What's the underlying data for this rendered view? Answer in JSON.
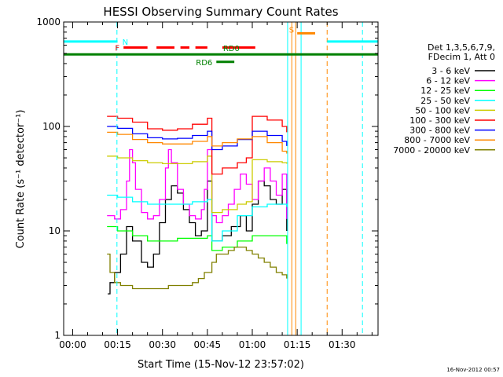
{
  "chart_data": {
    "type": "line",
    "title": "HESSI Observing Summary Count Rates",
    "xlabel": "Start Time (15-Nov-12 23:57:02)",
    "ylabel": "Count Rate (s⁻¹ detector⁻¹)",
    "x_unit": "minutes from 00:00",
    "xlim": [
      -3,
      102
    ],
    "ylim": [
      1,
      1000
    ],
    "log_y": true,
    "x_ticks": [
      "00:00",
      "00:15",
      "00:30",
      "00:45",
      "01:00",
      "01:15",
      "01:30"
    ],
    "x_tick_values": [
      0,
      15,
      30,
      45,
      60,
      75,
      90
    ],
    "y_ticks": [
      "1",
      "10",
      "100",
      "1000"
    ],
    "y_tick_values": [
      1,
      10,
      100,
      1000
    ],
    "grid": false,
    "legend": {
      "placement": "right",
      "header": [
        "Det 1,3,5,6,7,9,",
        "FDecim 1, Att 0"
      ]
    },
    "series": [
      {
        "name": "3 - 6 keV",
        "color": "#000000",
        "x": [
          11.7,
          12.5,
          14,
          16,
          18,
          20,
          23,
          25,
          27,
          29,
          31,
          33,
          35,
          37,
          39,
          41,
          43,
          45,
          46.5,
          48,
          50,
          53,
          56,
          58,
          60,
          62,
          64,
          66,
          68,
          70,
          71.5
        ],
        "y": [
          2.5,
          3.2,
          4,
          6,
          11,
          8,
          5,
          4.5,
          6,
          12,
          20,
          27,
          23,
          16,
          12,
          9,
          10,
          30,
          8,
          8,
          9,
          11,
          14,
          10,
          18,
          30,
          27,
          20,
          18,
          25,
          10
        ]
      },
      {
        "name": "6 - 12 keV",
        "color": "#ff00ff",
        "x": [
          11.5,
          14,
          16,
          18,
          19,
          20,
          21,
          23,
          25,
          27,
          29,
          31,
          32,
          33,
          35,
          37,
          39,
          41,
          43,
          44,
          45,
          46.5,
          48,
          50,
          52,
          54,
          56,
          58,
          60,
          62,
          64,
          66,
          68,
          70,
          71.5
        ],
        "y": [
          14,
          13,
          16,
          30,
          60,
          45,
          25,
          15,
          13,
          14,
          20,
          40,
          60,
          45,
          25,
          18,
          14,
          13,
          16,
          25,
          60,
          14,
          12,
          14,
          18,
          25,
          35,
          28,
          20,
          30,
          40,
          30,
          22,
          35,
          13
        ]
      },
      {
        "name": "12 - 25 keV",
        "color": "#00ff00",
        "x": [
          11.5,
          15,
          20,
          25,
          30,
          35,
          40,
          45,
          46.5,
          50,
          55,
          60,
          65,
          70,
          71.5
        ],
        "y": [
          11,
          10,
          9,
          8,
          8,
          8.5,
          8.5,
          9,
          6.5,
          7,
          8,
          9,
          9,
          9,
          7.5
        ]
      },
      {
        "name": "25 - 50 keV",
        "color": "#00ffff",
        "x": [
          11.5,
          15,
          20,
          25,
          30,
          35,
          40,
          45,
          46.5,
          50,
          55,
          60,
          65,
          70,
          71.5
        ],
        "y": [
          22,
          21,
          19,
          18,
          18,
          18,
          19,
          20,
          8,
          10,
          14,
          17,
          18,
          18,
          17
        ]
      },
      {
        "name": "50 - 100 keV",
        "color": "#cccc00",
        "x": [
          11.5,
          15,
          20,
          25,
          30,
          35,
          40,
          45,
          46.5,
          50,
          55,
          58,
          60,
          65,
          70,
          71.5
        ],
        "y": [
          52,
          50,
          47,
          45,
          44,
          44,
          46,
          52,
          15,
          16,
          18,
          19,
          48,
          46,
          45,
          44
        ]
      },
      {
        "name": "100 - 300 keV",
        "color": "#ff0000",
        "x": [
          11.5,
          15,
          20,
          25,
          30,
          35,
          40,
          45,
          46.5,
          50,
          55,
          58,
          60,
          65,
          70,
          71.5
        ],
        "y": [
          125,
          120,
          110,
          95,
          92,
          95,
          105,
          120,
          35,
          40,
          45,
          50,
          125,
          115,
          100,
          88
        ]
      },
      {
        "name": "300 - 800 keV",
        "color": "#0000ff",
        "x": [
          11.5,
          15,
          20,
          25,
          30,
          35,
          40,
          45,
          46.5,
          50,
          55,
          60,
          65,
          70,
          71.5
        ],
        "y": [
          100,
          96,
          85,
          78,
          76,
          77,
          82,
          90,
          60,
          65,
          75,
          90,
          82,
          72,
          65
        ]
      },
      {
        "name": "800 - 7000 keV",
        "color": "#ff8800",
        "x": [
          11.5,
          15,
          20,
          25,
          30,
          35,
          40,
          45,
          46.5,
          50,
          55,
          60,
          65,
          70,
          71.5
        ],
        "y": [
          88,
          84,
          75,
          70,
          68,
          68,
          72,
          80,
          65,
          70,
          76,
          80,
          70,
          58,
          55
        ]
      },
      {
        "name": "7000 - 20000 keV",
        "color": "#808000",
        "x": [
          11.5,
          12.5,
          14,
          16,
          18,
          20,
          22,
          24,
          26,
          28,
          30,
          32,
          34,
          36,
          38,
          40,
          42,
          44,
          46.5,
          48,
          50,
          52,
          54,
          56,
          58,
          60,
          62,
          64,
          66,
          68,
          70,
          71.5
        ],
        "y": [
          6,
          4,
          3.2,
          3,
          3,
          2.8,
          2.8,
          2.8,
          2.8,
          2.8,
          2.8,
          3,
          3,
          3,
          3,
          3.2,
          3.5,
          4,
          5,
          6,
          6,
          6.5,
          7,
          7,
          6.5,
          6,
          5.5,
          5,
          4.5,
          4,
          3.8,
          3.5
        ]
      }
    ],
    "annotations": [
      {
        "label": "N",
        "color": "#00ffff",
        "segments": [
          [
            -3,
            15
          ],
          [
            85,
            102
          ]
        ],
        "y": 650
      },
      {
        "label": "F",
        "color": "#ff0000",
        "segments": [
          [
            17,
            25
          ],
          [
            28,
            34
          ],
          [
            36,
            39
          ],
          [
            41,
            45
          ],
          [
            50,
            61
          ]
        ],
        "y": 570
      },
      {
        "label": "S",
        "color": "#ff8800",
        "segments": [
          [
            75,
            81
          ]
        ],
        "y": 780
      },
      {
        "label": "RD0",
        "color": "#008000",
        "segments": [
          [
            -3,
            102
          ]
        ],
        "y": 490
      },
      {
        "label": "RD6",
        "color": "#008000",
        "segments": [
          [
            48,
            54
          ]
        ],
        "y": 415
      }
    ],
    "vertical_lines": [
      {
        "x": -3,
        "color": "#00ffff",
        "style": "solid"
      },
      {
        "x": 14.8,
        "color": "#00ffff",
        "style": "dashed"
      },
      {
        "x": 71.8,
        "color": "#00ffff",
        "style": "solid"
      },
      {
        "x": 76.3,
        "color": "#00ffff",
        "style": "solid"
      },
      {
        "x": 96.8,
        "color": "#00ffff",
        "style": "dashed"
      },
      {
        "x": 73.2,
        "color": "#ff8800",
        "style": "solid"
      },
      {
        "x": 74.5,
        "color": "#ff8800",
        "style": "solid"
      },
      {
        "x": 85,
        "color": "#ff8800",
        "style": "dashed"
      }
    ],
    "timestamp": "16-Nov-2012 00:57"
  }
}
